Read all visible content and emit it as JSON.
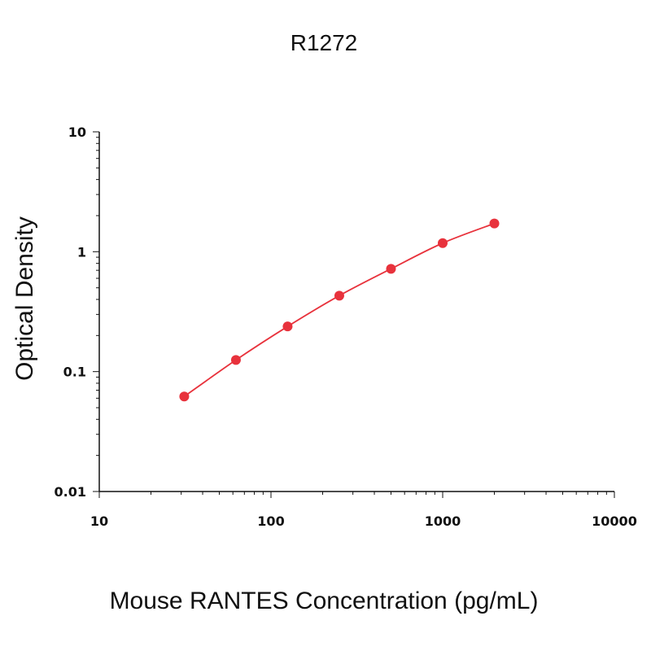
{
  "chart_data": {
    "type": "scatter",
    "title": "R1272",
    "xlabel": "Mouse RANTES Concentration (pg/mL)",
    "ylabel": "Optical Density",
    "xscale": "log",
    "yscale": "log",
    "xlim": [
      10,
      10000
    ],
    "ylim": [
      0.01,
      10
    ],
    "xticks": [
      "10",
      "100",
      "1000",
      "10000"
    ],
    "yticks": [
      "0.01",
      "0.1",
      "1",
      "10"
    ],
    "grid": false,
    "legend": "none",
    "fit_line": true,
    "color": "#e8323c",
    "series": [
      {
        "x": [
          31.25,
          62.5,
          125,
          250,
          500,
          1000,
          2000
        ],
        "y": [
          0.062,
          0.125,
          0.238,
          0.43,
          0.72,
          1.18,
          1.72
        ]
      }
    ]
  }
}
